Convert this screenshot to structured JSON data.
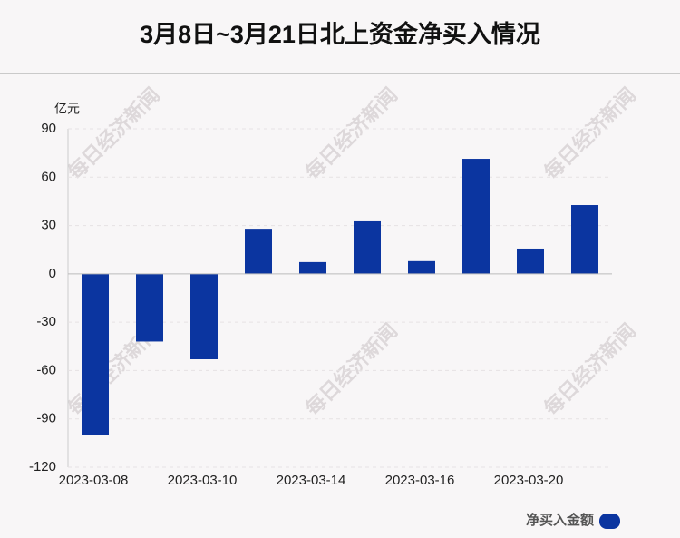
{
  "chart_data": {
    "type": "bar",
    "title": "3月8日~3月21日北上资金净买入情况",
    "y_unit": "亿元",
    "watermark": "每日经济新闻",
    "categories": [
      "2023-03-08",
      null,
      "2023-03-10",
      null,
      "2023-03-14",
      null,
      "2023-03-16",
      null,
      "2023-03-20",
      null
    ],
    "series": [
      {
        "name": "净买入金额",
        "color": "#0b35a0",
        "values": [
          -100,
          -42,
          -53,
          28,
          7.3,
          32.6,
          7.9,
          71.4,
          15.7,
          42.7
        ]
      }
    ],
    "ylim": [
      -120,
      90
    ],
    "yticks": [
      -120,
      -90,
      -60,
      -30,
      0,
      30,
      60,
      90
    ],
    "grid": true,
    "legend": "bottom-right"
  }
}
